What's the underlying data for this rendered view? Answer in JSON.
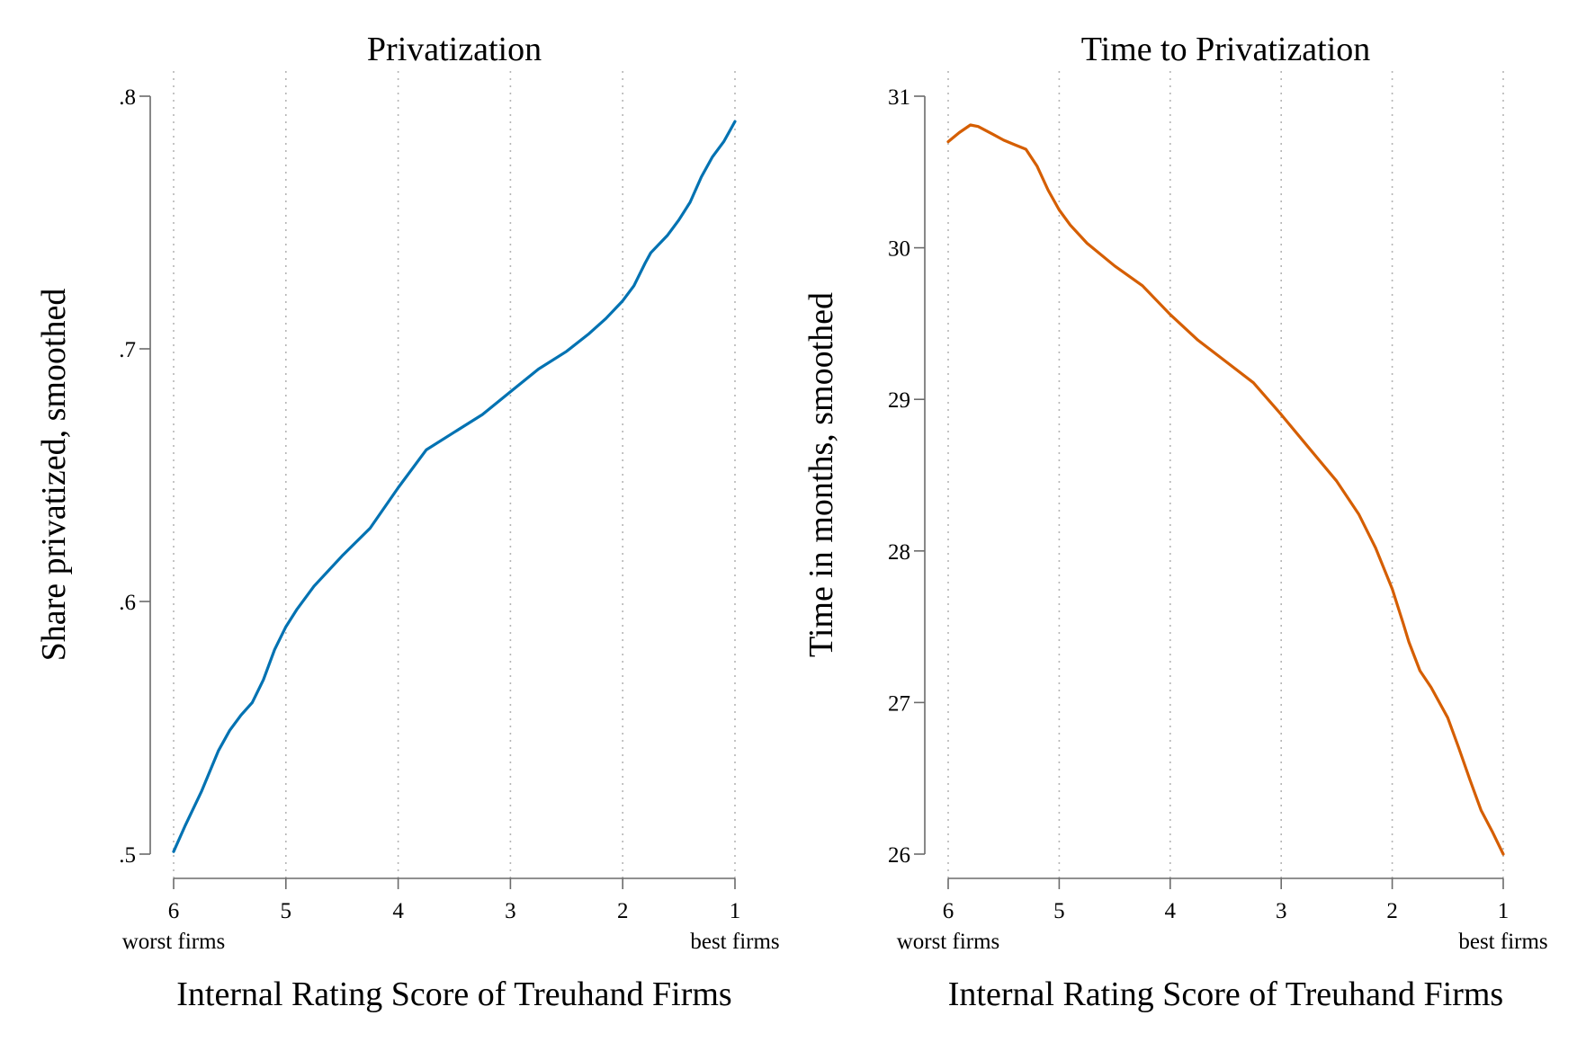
{
  "chart_data": [
    {
      "type": "line",
      "title": "Privatization",
      "xlabel": "Internal Rating Score of Treuhand Firms",
      "ylabel": "Share privatized, smoothed",
      "x_ticks": [
        6,
        5,
        4,
        3,
        2,
        1
      ],
      "x_tick_labels": [
        "6",
        "5",
        "4",
        "3",
        "2",
        "1"
      ],
      "x_reversed": true,
      "x_end_labels": {
        "left": "worst firms",
        "right": "best firms"
      },
      "y_ticks": [
        0.5,
        0.6,
        0.7,
        0.8
      ],
      "y_tick_labels": [
        ".5",
        ".6",
        ".7",
        ".8"
      ],
      "xlim": [
        6,
        1
      ],
      "ylim": [
        0.5,
        0.8
      ],
      "grid": "vertical dotted",
      "color": "#0072b2",
      "series": [
        {
          "x": [
            6.0,
            5.9,
            5.75,
            5.6,
            5.5,
            5.4,
            5.3,
            5.2,
            5.1,
            5.0,
            4.9,
            4.75,
            4.5,
            4.25,
            4.0,
            3.75,
            3.5,
            3.25,
            3.0,
            2.75,
            2.5,
            2.3,
            2.15,
            2.0,
            1.9,
            1.8,
            1.75,
            1.6,
            1.5,
            1.4,
            1.3,
            1.2,
            1.1,
            1.0
          ],
          "y": [
            0.501,
            0.511,
            0.525,
            0.541,
            0.549,
            0.555,
            0.56,
            0.569,
            0.581,
            0.59,
            0.597,
            0.606,
            0.618,
            0.629,
            0.645,
            0.66,
            0.667,
            0.674,
            0.683,
            0.692,
            0.699,
            0.706,
            0.712,
            0.719,
            0.725,
            0.734,
            0.738,
            0.745,
            0.751,
            0.758,
            0.768,
            0.776,
            0.782,
            0.79
          ]
        }
      ]
    },
    {
      "type": "line",
      "title": "Time to Privatization",
      "xlabel": "Internal Rating Score of Treuhand Firms",
      "ylabel": "Time in months, smoothed",
      "x_ticks": [
        6,
        5,
        4,
        3,
        2,
        1
      ],
      "x_tick_labels": [
        "6",
        "5",
        "4",
        "3",
        "2",
        "1"
      ],
      "x_reversed": true,
      "x_end_labels": {
        "left": "worst firms",
        "right": "best firms"
      },
      "y_ticks": [
        26,
        27,
        28,
        29,
        30,
        31
      ],
      "y_tick_labels": [
        "26",
        "27",
        "28",
        "29",
        "30",
        "31"
      ],
      "xlim": [
        6,
        1
      ],
      "ylim": [
        26,
        31
      ],
      "grid": "vertical dotted",
      "color": "#d55e00",
      "series": [
        {
          "x": [
            6.0,
            5.9,
            5.8,
            5.73,
            5.6,
            5.5,
            5.4,
            5.3,
            5.2,
            5.1,
            5.0,
            4.9,
            4.75,
            4.5,
            4.25,
            4.0,
            3.75,
            3.5,
            3.25,
            3.0,
            2.75,
            2.5,
            2.3,
            2.15,
            2.0,
            1.9,
            1.85,
            1.75,
            1.65,
            1.5,
            1.4,
            1.3,
            1.2,
            1.1,
            1.0
          ],
          "y": [
            30.7,
            30.76,
            30.81,
            30.8,
            30.75,
            30.71,
            30.68,
            30.65,
            30.54,
            30.38,
            30.25,
            30.15,
            30.03,
            29.88,
            29.75,
            29.56,
            29.39,
            29.25,
            29.11,
            28.9,
            28.68,
            28.46,
            28.24,
            28.02,
            27.75,
            27.52,
            27.4,
            27.21,
            27.1,
            26.9,
            26.7,
            26.49,
            26.29,
            26.15,
            26.0
          ]
        }
      ]
    }
  ]
}
